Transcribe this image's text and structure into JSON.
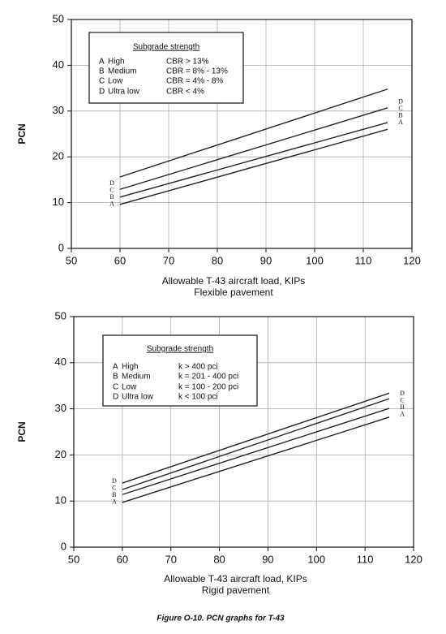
{
  "chart_data": [
    {
      "type": "line",
      "title": "Subgrade strength",
      "xlabel": "Allowable T-43 aircraft load, KIPs",
      "subtitle": "Flexible pavement",
      "ylabel": "PCN",
      "x": [
        60,
        115
      ],
      "series": [
        {
          "name": "A",
          "description": "High",
          "criterion": "CBR > 13%",
          "color": "#222222",
          "values": [
            9.6,
            26
          ]
        },
        {
          "name": "B",
          "description": "Medium",
          "criterion": "CBR = 8% - 13%",
          "color": "#222222",
          "values": [
            11.2,
            27.5
          ]
        },
        {
          "name": "C",
          "description": "Low",
          "criterion": "CBR = 4% - 8%",
          "color": "#222222",
          "values": [
            12.9,
            30.7
          ]
        },
        {
          "name": "D",
          "description": "Ultra low",
          "criterion": "CBR < 4%",
          "color": "#222222",
          "values": [
            15.6,
            34.8
          ]
        }
      ],
      "xlim": [
        50,
        120
      ],
      "xticks": [
        50,
        60,
        70,
        80,
        90,
        100,
        110,
        120
      ],
      "ylim": [
        0,
        50
      ],
      "yticks": [
        0,
        10,
        20,
        30,
        40,
        50
      ],
      "grid": true
    },
    {
      "type": "line",
      "title": "Subgrade strength",
      "xlabel": "Allowable T-43 aircraft load, KIPs",
      "subtitle": "Rigid pavement",
      "ylabel": "PCN",
      "x": [
        60,
        115
      ],
      "series": [
        {
          "name": "A",
          "description": "High",
          "criterion": "k > 400 pci",
          "color": "#222222",
          "values": [
            9.7,
            28.2
          ]
        },
        {
          "name": "B",
          "description": "Medium",
          "criterion": "k = 201 - 400 pci",
          "color": "#222222",
          "values": [
            11.4,
            30.1
          ]
        },
        {
          "name": "C",
          "description": "Low",
          "criterion": "k = 100 - 200 pci",
          "color": "#222222",
          "values": [
            12.5,
            32.2
          ]
        },
        {
          "name": "D",
          "description": "Ultra low",
          "criterion": "k < 100 pci",
          "color": "#222222",
          "values": [
            13.9,
            33.4
          ]
        }
      ],
      "xlim": [
        50,
        120
      ],
      "xticks": [
        50,
        60,
        70,
        80,
        90,
        100,
        110,
        120
      ],
      "ylim": [
        0,
        50
      ],
      "yticks": [
        0,
        10,
        20,
        30,
        40,
        50
      ],
      "grid": true
    }
  ],
  "caption": "Figure O-10.  PCN graphs for T-43"
}
